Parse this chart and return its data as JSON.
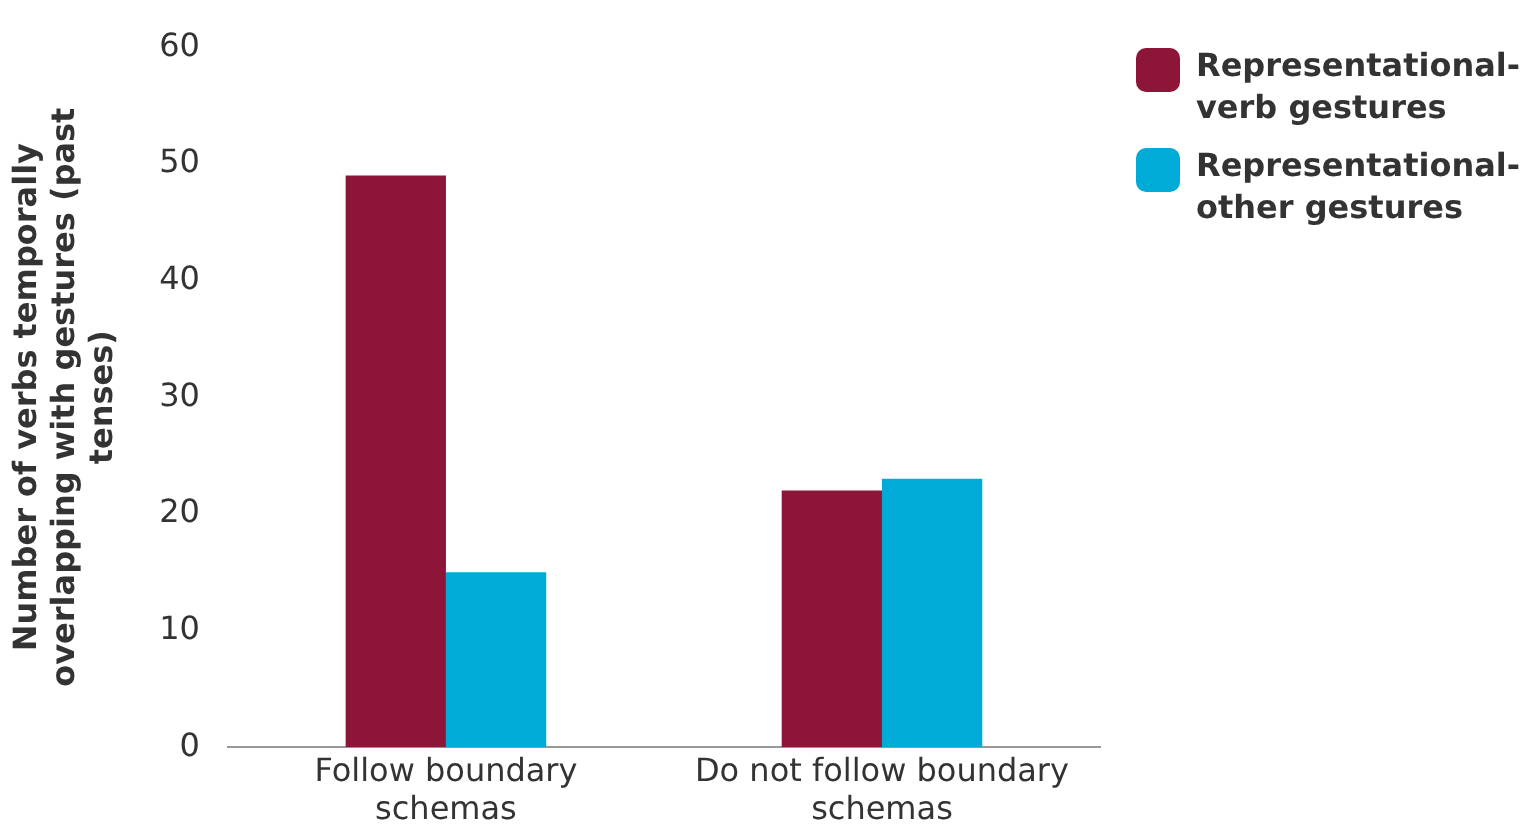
{
  "chart_data": {
    "type": "bar",
    "ylabel": "Number of verbs temporally overlapping with gestures (past tenses)",
    "categories": [
      "Follow boundary schemas",
      "Do not follow boundary schemas"
    ],
    "series": [
      {
        "name": "Representational-verb gestures",
        "color": "#8c1538",
        "values": [
          49,
          22
        ]
      },
      {
        "name": "Representational-other gestures",
        "color": "#00acd7",
        "values": [
          15,
          23
        ]
      }
    ],
    "ylim": [
      0,
      60
    ],
    "yticks": [
      0,
      10,
      20,
      30,
      40,
      50,
      60
    ],
    "grid": false,
    "legend": "top right"
  }
}
